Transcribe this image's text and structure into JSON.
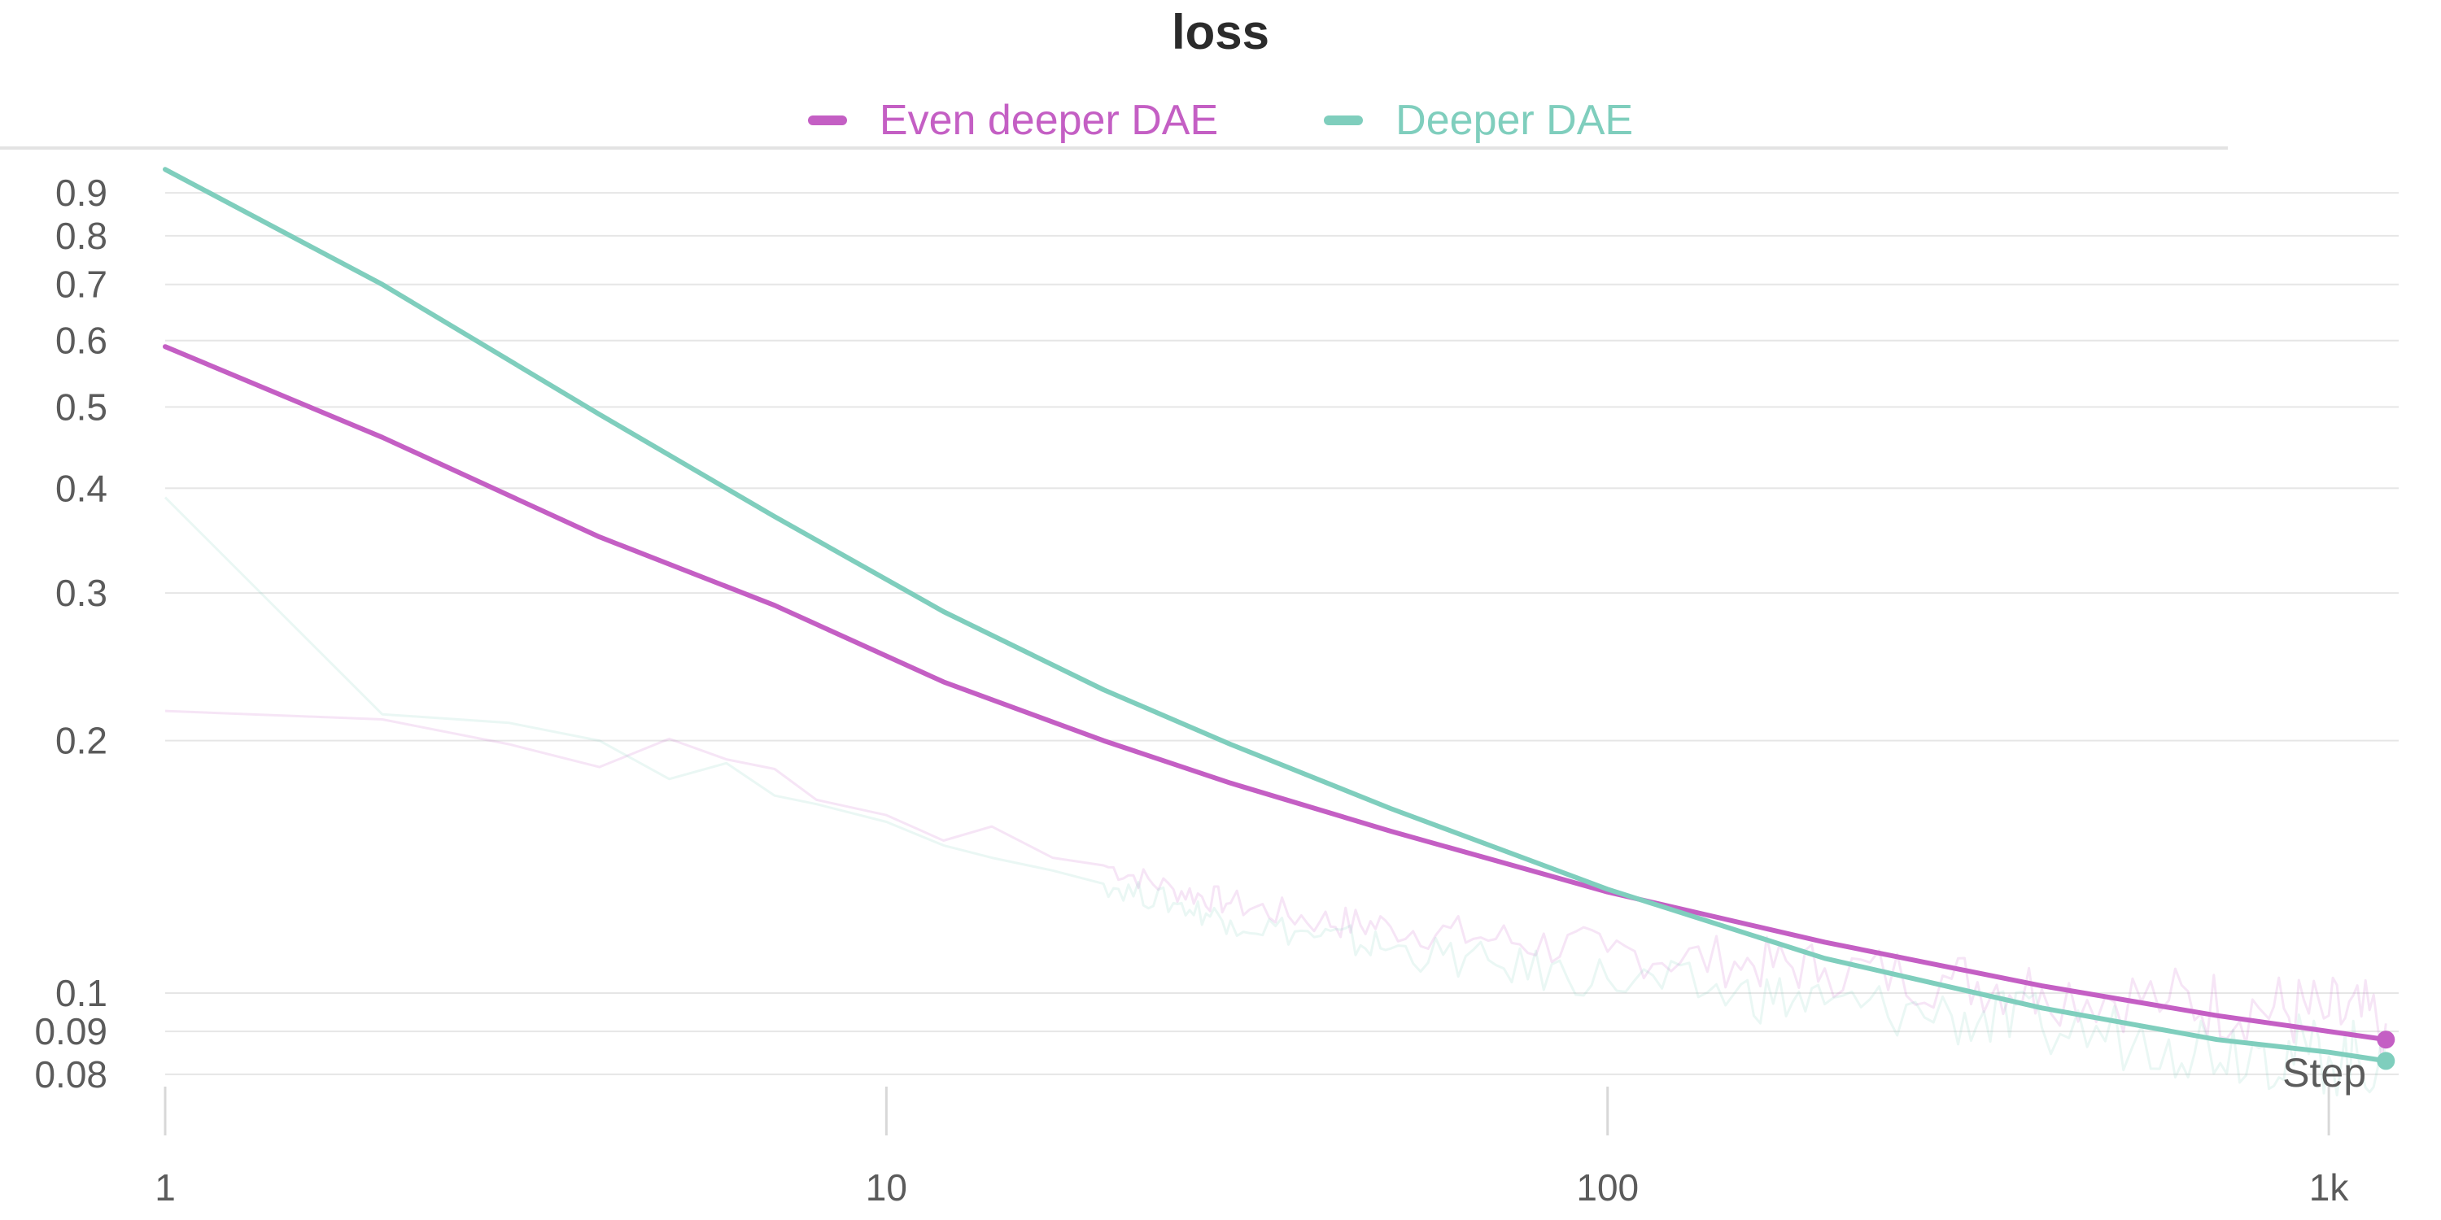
{
  "chart_data": {
    "type": "line",
    "title": "loss",
    "xlabel": "Step",
    "ylabel": "",
    "x_scale": "log",
    "y_scale": "log",
    "xlim": [
      1,
      1250
    ],
    "ylim": [
      0.077,
      1.0
    ],
    "legend": "top-center",
    "grid": true,
    "x_ticks": [
      {
        "value": 1,
        "label": "1"
      },
      {
        "value": 10,
        "label": "10"
      },
      {
        "value": 100,
        "label": "100"
      },
      {
        "value": 1000,
        "label": "1k"
      }
    ],
    "y_ticks": [
      {
        "value": 0.9,
        "label": "0.9"
      },
      {
        "value": 0.8,
        "label": "0.8"
      },
      {
        "value": 0.7,
        "label": "0.7"
      },
      {
        "value": 0.6,
        "label": "0.6"
      },
      {
        "value": 0.5,
        "label": "0.5"
      },
      {
        "value": 0.4,
        "label": "0.4"
      },
      {
        "value": 0.3,
        "label": "0.3"
      },
      {
        "value": 0.2,
        "label": "0.2"
      },
      {
        "value": 0.1,
        "label": "0.1"
      },
      {
        "value": 0.09,
        "label": "0.09"
      },
      {
        "value": 0.08,
        "label": "0.08"
      }
    ],
    "series": [
      {
        "name": "Even deeper DAE",
        "color": "#c45fc4",
        "x": [
          1,
          2,
          4,
          7,
          12,
          20,
          30,
          50,
          100,
          200,
          400,
          700,
          1000,
          1200
        ],
        "y": [
          0.59,
          0.46,
          0.35,
          0.29,
          0.235,
          0.2,
          0.178,
          0.156,
          0.132,
          0.115,
          0.102,
          0.094,
          0.09,
          0.088
        ]
      },
      {
        "name": "Deeper DAE",
        "color": "#7fcebd",
        "x": [
          1,
          2,
          4,
          7,
          12,
          20,
          30,
          50,
          100,
          200,
          400,
          700,
          1000,
          1200
        ],
        "y": [
          0.96,
          0.7,
          0.49,
          0.37,
          0.285,
          0.23,
          0.198,
          0.166,
          0.133,
          0.11,
          0.096,
          0.088,
          0.085,
          0.083
        ]
      }
    ],
    "raw_series": [
      {
        "name": "Even deeper DAE",
        "color": "#c45fc4",
        "x": [
          1,
          2,
          3,
          4,
          5,
          6,
          7,
          8,
          10,
          12,
          14,
          17,
          20,
          25,
          30,
          40,
          50,
          70,
          100,
          150,
          200,
          300,
          400,
          600,
          800,
          1000,
          1200
        ],
        "y": [
          0.217,
          0.212,
          0.198,
          0.186,
          0.201,
          0.19,
          0.185,
          0.17,
          0.163,
          0.152,
          0.158,
          0.145,
          0.142,
          0.133,
          0.128,
          0.122,
          0.12,
          0.116,
          0.112,
          0.109,
          0.107,
          0.104,
          0.101,
          0.098,
          0.096,
          0.094,
          0.092
        ]
      },
      {
        "name": "Deeper DAE",
        "color": "#7fcebd",
        "x": [
          1,
          2,
          3,
          4,
          5,
          6,
          7,
          8,
          10,
          12,
          14,
          17,
          20,
          25,
          30,
          40,
          50,
          70,
          100,
          150,
          200,
          300,
          400,
          600,
          800,
          1000,
          1200
        ],
        "y": [
          0.39,
          0.215,
          0.21,
          0.2,
          0.18,
          0.188,
          0.172,
          0.168,
          0.16,
          0.15,
          0.145,
          0.14,
          0.135,
          0.128,
          0.122,
          0.117,
          0.113,
          0.108,
          0.104,
          0.1,
          0.097,
          0.094,
          0.091,
          0.088,
          0.086,
          0.084,
          0.083
        ]
      }
    ]
  }
}
